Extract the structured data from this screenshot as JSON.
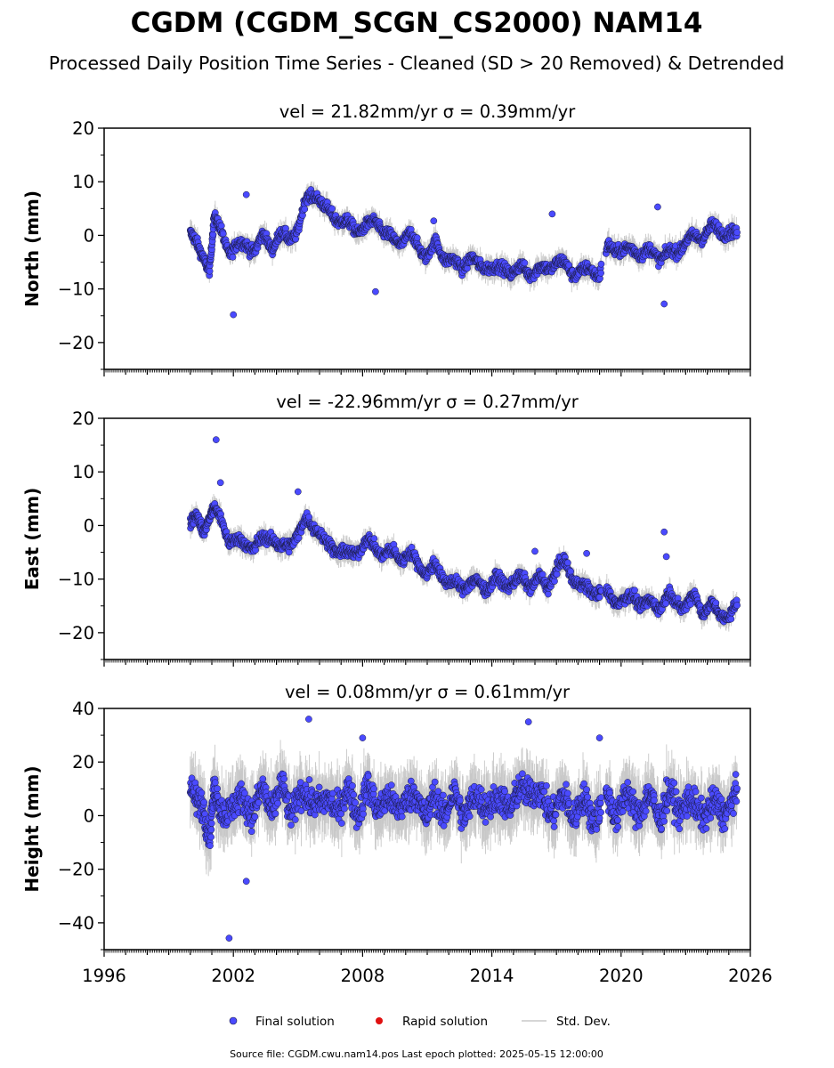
{
  "title": "CGDM (CGDM_SCGN_CS2000) NAM14",
  "subtitle": "Processed Daily Position Time Series - Cleaned (SD > 20 Removed) & Detrended",
  "footer": "Source file: CGDM.cwu.nam14.pos  Last epoch plotted: 2025-05-15 12:00:00",
  "legend": {
    "placement": "bottom-center",
    "items": [
      {
        "label": "Final solution",
        "color": "#4a4aff",
        "kind": "marker"
      },
      {
        "label": "Rapid solution",
        "color": "#e01010",
        "kind": "marker"
      },
      {
        "label": "Std. Dev.",
        "color": "#c8c8c8",
        "kind": "line"
      }
    ]
  },
  "colors": {
    "final": "#4a4aff",
    "marker_edge": "#1a1a40",
    "std": "#c8c8c8"
  },
  "chart_data": [
    {
      "type": "scatter",
      "component": "north",
      "panel_title": "vel = 21.82mm/yr   σ = 0.39mm/yr",
      "ylabel": "North (mm)",
      "xlim": [
        1996,
        2026
      ],
      "ylim": [
        -25,
        20
      ],
      "yticks": [
        -20,
        -10,
        0,
        10,
        20
      ],
      "ytick_labels": [
        "−20",
        "−10",
        "0",
        "10",
        "20"
      ],
      "grid": false,
      "series": [
        {
          "x": [
            2000.0,
            2000.3,
            2000.6,
            2000.9,
            2001.1,
            2001.4,
            2001.8,
            2002.2,
            2002.6,
            2003.0,
            2003.4,
            2003.8,
            2004.2,
            2004.6,
            2005.0,
            2005.4,
            2005.8,
            2006.2,
            2006.6,
            2007.0,
            2007.4,
            2007.8,
            2008.2,
            2008.6,
            2009.0,
            2009.4,
            2009.8,
            2010.2,
            2010.6,
            2011.0,
            2011.4,
            2011.8,
            2012.2,
            2012.6,
            2013.0,
            2013.4,
            2013.8,
            2014.2,
            2014.6,
            2015.0,
            2015.4,
            2015.8,
            2016.2,
            2016.6,
            2017.0,
            2017.4,
            2017.8,
            2018.2,
            2018.6,
            2019.0,
            2019.4,
            2019.8,
            2020.2,
            2020.6,
            2021.0,
            2021.4,
            2021.8,
            2022.2,
            2022.6,
            2023.0,
            2023.4,
            2023.8,
            2024.2,
            2024.6,
            2025.0,
            2025.4
          ],
          "y": [
            0.5,
            -2.0,
            -4.0,
            -6.0,
            3.0,
            1.0,
            -3.0,
            -2.0,
            -1.5,
            -3.0,
            0.0,
            -2.0,
            0.0,
            -0.5,
            1.0,
            7.0,
            8.0,
            5.0,
            4.0,
            2.5,
            2.0,
            1.0,
            1.5,
            3.0,
            0.5,
            -1.0,
            -1.0,
            0.0,
            -2.0,
            -4.0,
            -1.5,
            -4.0,
            -5.0,
            -6.0,
            -4.0,
            -6.0,
            -5.5,
            -6.5,
            -6.0,
            -7.0,
            -6.0,
            -7.0,
            -6.5,
            -6.0,
            -5.0,
            -5.5,
            -7.0,
            -7.0,
            -6.0,
            -7.5,
            -2.0,
            -2.5,
            -3.0,
            -2.5,
            -3.5,
            -3.0,
            -4.0,
            -3.5,
            -3.0,
            -1.0,
            -0.5,
            0.0,
            1.5,
            1.0,
            0.5,
            0.0
          ],
          "outliers_x": [
            2002.0,
            2002.6,
            2008.6,
            2011.3,
            2016.8,
            2021.7,
            2022.0
          ],
          "outliers_y": [
            -14.8,
            7.6,
            -10.5,
            2.7,
            4.0,
            5.3,
            -12.8
          ]
        }
      ]
    },
    {
      "type": "scatter",
      "component": "east",
      "panel_title": "vel = -22.96mm/yr   σ = 0.27mm/yr",
      "ylabel": "East (mm)",
      "xlim": [
        1996,
        2026
      ],
      "ylim": [
        -25,
        20
      ],
      "yticks": [
        -20,
        -10,
        0,
        10,
        20
      ],
      "ytick_labels": [
        "−20",
        "−10",
        "0",
        "10",
        "20"
      ],
      "grid": false,
      "series": [
        {
          "x": [
            2000.0,
            2000.3,
            2000.6,
            2000.9,
            2001.1,
            2001.4,
            2001.8,
            2002.2,
            2002.6,
            2003.0,
            2003.4,
            2003.8,
            2004.2,
            2004.6,
            2005.0,
            2005.4,
            2005.8,
            2006.2,
            2006.6,
            2007.0,
            2007.4,
            2007.8,
            2008.2,
            2008.6,
            2009.0,
            2009.4,
            2009.8,
            2010.2,
            2010.6,
            2011.0,
            2011.4,
            2011.8,
            2012.2,
            2012.6,
            2013.0,
            2013.4,
            2013.8,
            2014.2,
            2014.6,
            2015.0,
            2015.4,
            2015.8,
            2016.2,
            2016.6,
            2017.0,
            2017.4,
            2017.8,
            2018.2,
            2018.6,
            2019.0,
            2019.4,
            2019.8,
            2020.2,
            2020.6,
            2021.0,
            2021.4,
            2021.8,
            2022.2,
            2022.6,
            2023.0,
            2023.4,
            2023.8,
            2024.2,
            2024.6,
            2025.0,
            2025.4
          ],
          "y": [
            0.5,
            1.5,
            -1.0,
            2.0,
            3.0,
            1.0,
            -2.5,
            -3.0,
            -3.5,
            -4.0,
            -2.5,
            -2.0,
            -4.5,
            -3.5,
            -1.5,
            1.0,
            0.0,
            -3.0,
            -4.0,
            -5.0,
            -5.5,
            -4.5,
            -3.0,
            -4.0,
            -5.5,
            -5.0,
            -6.0,
            -5.5,
            -7.0,
            -9.0,
            -7.5,
            -10.0,
            -11.0,
            -11.5,
            -10.5,
            -11.0,
            -11.5,
            -10.0,
            -11.0,
            -10.5,
            -10.0,
            -11.0,
            -10.0,
            -11.5,
            -8.0,
            -7.0,
            -10.0,
            -11.5,
            -12.0,
            -12.5,
            -13.0,
            -14.0,
            -14.0,
            -13.0,
            -15.0,
            -14.5,
            -15.0,
            -13.0,
            -14.5,
            -15.0,
            -13.0,
            -16.0,
            -15.0,
            -16.5,
            -17.0,
            -15.0
          ],
          "outliers_x": [
            2001.2,
            2001.4,
            2005.0,
            2016.0,
            2018.4,
            2022.0,
            2022.1
          ],
          "outliers_y": [
            16.0,
            8.0,
            6.3,
            -4.8,
            -5.2,
            -1.2,
            -5.8
          ]
        }
      ]
    },
    {
      "type": "scatter",
      "component": "height",
      "panel_title": "vel = 0.08mm/yr   σ = 0.61mm/yr",
      "ylabel": "Height (mm)",
      "xlim": [
        1996,
        2026
      ],
      "ylim": [
        -50,
        40
      ],
      "yticks": [
        -40,
        -20,
        0,
        20,
        40
      ],
      "ytick_labels": [
        "−40",
        "−20",
        "0",
        "20",
        "40"
      ],
      "grid": false,
      "series": [
        {
          "x": [
            2000.0,
            2000.3,
            2000.6,
            2000.9,
            2001.1,
            2001.4,
            2001.8,
            2002.2,
            2002.6,
            2003.0,
            2003.4,
            2003.8,
            2004.2,
            2004.6,
            2005.0,
            2005.4,
            2005.8,
            2006.2,
            2006.6,
            2007.0,
            2007.4,
            2007.8,
            2008.2,
            2008.6,
            2009.0,
            2009.4,
            2009.8,
            2010.2,
            2010.6,
            2011.0,
            2011.4,
            2011.8,
            2012.2,
            2012.6,
            2013.0,
            2013.4,
            2013.8,
            2014.2,
            2014.6,
            2015.0,
            2015.4,
            2015.8,
            2016.2,
            2016.6,
            2017.0,
            2017.4,
            2017.8,
            2018.2,
            2018.6,
            2019.0,
            2019.4,
            2019.8,
            2020.2,
            2020.6,
            2021.0,
            2021.4,
            2021.8,
            2022.2,
            2022.6,
            2023.0,
            2023.4,
            2023.8,
            2024.2,
            2024.6,
            2025.0,
            2025.4
          ],
          "y": [
            10.0,
            2.0,
            5.0,
            -5.0,
            8.0,
            0.0,
            5.0,
            3.0,
            6.0,
            2.0,
            8.0,
            4.0,
            9.0,
            3.0,
            7.0,
            5.0,
            8.0,
            2.0,
            6.0,
            4.0,
            7.0,
            3.0,
            8.0,
            5.0,
            6.0,
            2.0,
            7.0,
            4.0,
            8.0,
            0.0,
            5.0,
            3.0,
            6.0,
            2.0,
            5.0,
            4.0,
            7.0,
            3.0,
            6.0,
            5.0,
            8.0,
            12.0,
            6.0,
            4.0,
            3.0,
            5.0,
            2.0,
            4.0,
            1.0,
            3.0,
            5.0,
            2.0,
            6.0,
            4.0,
            3.0,
            5.0,
            2.0,
            6.0,
            4.0,
            5.0,
            2.0,
            3.0,
            1.0,
            4.0,
            3.0,
            5.0
          ],
          "outliers_x": [
            2001.8,
            2002.6,
            2005.5,
            2008.0,
            2015.7,
            2019.0
          ],
          "outliers_y": [
            -45.7,
            -24.5,
            36.0,
            29.0,
            35.0,
            29.0
          ]
        }
      ]
    }
  ],
  "x_axis": {
    "ticks": [
      1996,
      2002,
      2008,
      2014,
      2020,
      2026
    ],
    "tick_labels": [
      "1996",
      "2002",
      "2008",
      "2014",
      "2020",
      "2026"
    ]
  }
}
